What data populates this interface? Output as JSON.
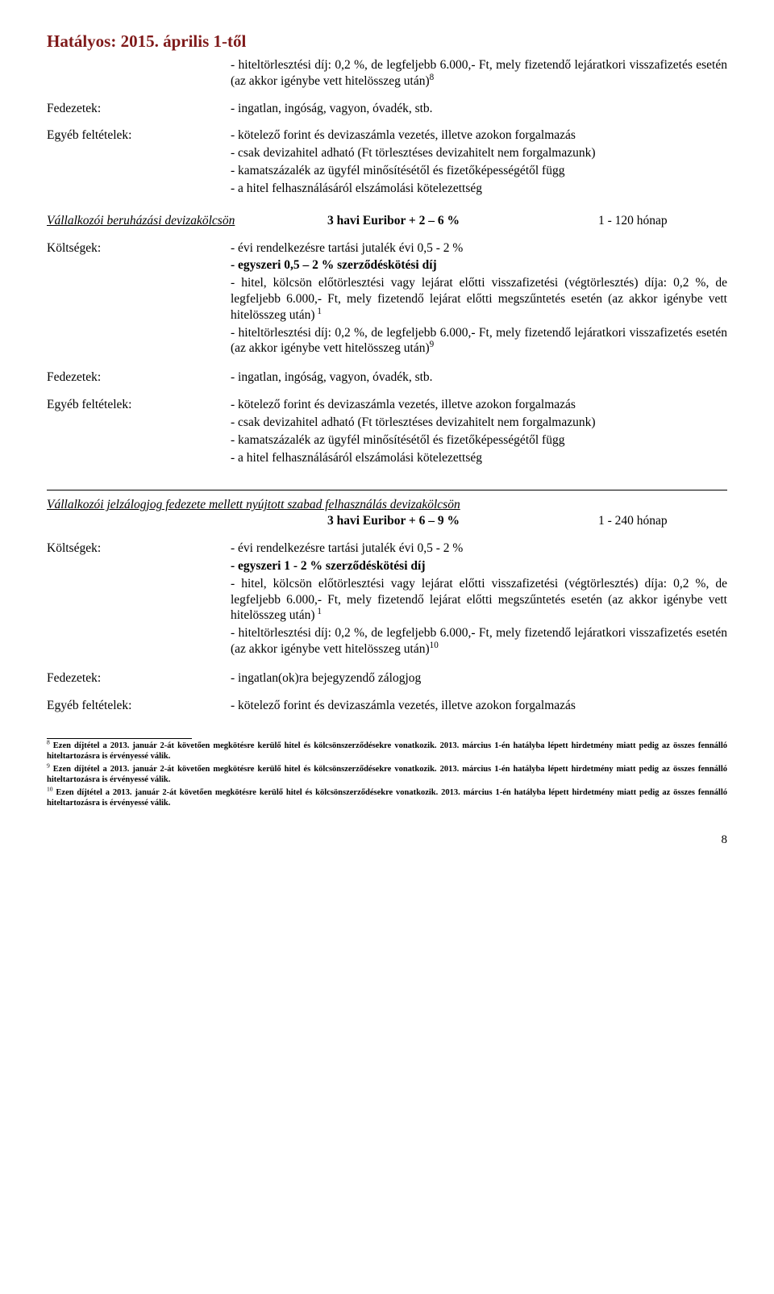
{
  "header": "Hatályos: 2015. április 1-től",
  "block1": {
    "p1": "- hiteltörlesztési díj: 0,2 %, de legfeljebb 6.000,- Ft, mely fizetendő lejáratkori visszafizetés esetén (az akkor igénybe vett hitelösszeg után)",
    "sup1": "8"
  },
  "row_fedezetek_label": "Fedezetek:",
  "row_fedezetek_value": "- ingatlan, ingóság, vagyon, óvadék, stb.",
  "row_egyeb_label": "Egyéb feltételek:",
  "egyeb_values": {
    "p1": "- kötelező forint és devizaszámla vezetés, illetve azokon forgalmazás",
    "p2": "- csak devizahitel adható (Ft törlesztéses devizahitelt nem forgalmazunk)",
    "p3": "- kamatszázalék az ügyfél minősítésétől és fizetőképességétől függ",
    "p4": "- a hitel felhasználásáról elszámolási kötelezettség"
  },
  "section2": {
    "title": "Vállalkozói beruházási devizakölcsön",
    "rate": "3 havi Euribor + 2 – 6 %",
    "term": "1 - 120 hónap"
  },
  "koltsegek_label": "Költségek:",
  "koltsegek2": {
    "p1": "- évi rendelkezésre tartási jutalék évi 0,5 - 2 %",
    "p2": "- egyszeri 0,5 – 2 % szerződéskötési díj",
    "p3": "- hitel, kölcsön előtörlesztési vagy lejárat előtti visszafizetési (végtörlesztés) díja: 0,2 %, de legfeljebb 6.000,- Ft, mely fizetendő lejárat előtti megszűntetés esetén (az akkor igénybe vett hitelösszeg után)",
    "sup3": " 1",
    "p4": "- hiteltörlesztési díj: 0,2 %, de legfeljebb 6.000,- Ft, mely fizetendő lejáratkori visszafizetés esetén (az akkor igénybe vett hitelösszeg után)",
    "sup4": "9"
  },
  "section3": {
    "title": "Vállalkozói jelzálogjog fedezete mellett nyújtott szabad felhasználás devizakölcsön",
    "rate": "3 havi Euribor + 6 – 9 %",
    "term": "1 - 240 hónap"
  },
  "koltsegek3": {
    "p1": "- évi rendelkezésre tartási jutalék évi 0,5 - 2 %",
    "p2": "- egyszeri 1 - 2 % szerződéskötési díj",
    "p3": "- hitel, kölcsön előtörlesztési vagy lejárat előtti visszafizetési (végtörlesztés) díja: 0,2 %, de legfeljebb 6.000,- Ft, mely fizetendő lejárat előtti megszűntetés esetén (az akkor igénybe vett hitelösszeg után)",
    "sup3": " 1",
    "p4": "- hiteltörlesztési díj: 0,2 %, de legfeljebb 6.000,- Ft, mely fizetendő lejáratkori visszafizetés esetén (az akkor igénybe vett hitelösszeg után)",
    "sup4": "10"
  },
  "fedezetek3_value": "- ingatlan(ok)ra bejegyzendő zálogjog",
  "egyeb3_value": "- kötelező forint és devizaszámla vezetés, illetve azokon forgalmazás",
  "footnotes": {
    "f8_sup": "8",
    "f8": " Ezen díjtétel a 2013. január 2-át követően megkötésre kerülő hitel és kölcsönszerződésekre vonatkozik. 2013. március 1-én hatályba lépett hirdetmény miatt pedig az összes fennálló hiteltartozásra is érvényessé válik.",
    "f9_sup": "9",
    "f9": " Ezen díjtétel a 2013. január 2-át követően megkötésre kerülő hitel és kölcsönszerződésekre vonatkozik. 2013. március 1-én hatályba lépett hirdetmény miatt pedig az összes fennálló hiteltartozásra is érvényessé válik.",
    "f10_sup": "10",
    "f10": " Ezen díjtétel a 2013. január 2-át követően megkötésre kerülő hitel és kölcsönszerződésekre vonatkozik. 2013. március 1-én hatályba lépett hirdetmény miatt pedig az összes fennálló hiteltartozásra is érvényessé válik."
  },
  "pagenum": "8"
}
